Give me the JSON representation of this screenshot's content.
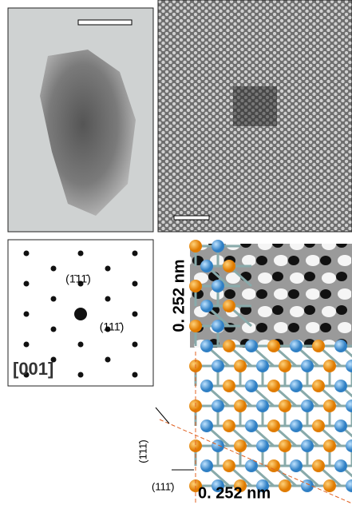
{
  "diffraction": {
    "spot_top": "(1̄11̄)",
    "spot_right": "(111̄)",
    "zone_axis": "[001]"
  },
  "model": {
    "vertical_spacing": "0. 252 nm",
    "horizontal_spacing": "0. 252 nm",
    "plane_left": "(1̄11̄)",
    "plane_bottom": "(111̄)"
  }
}
